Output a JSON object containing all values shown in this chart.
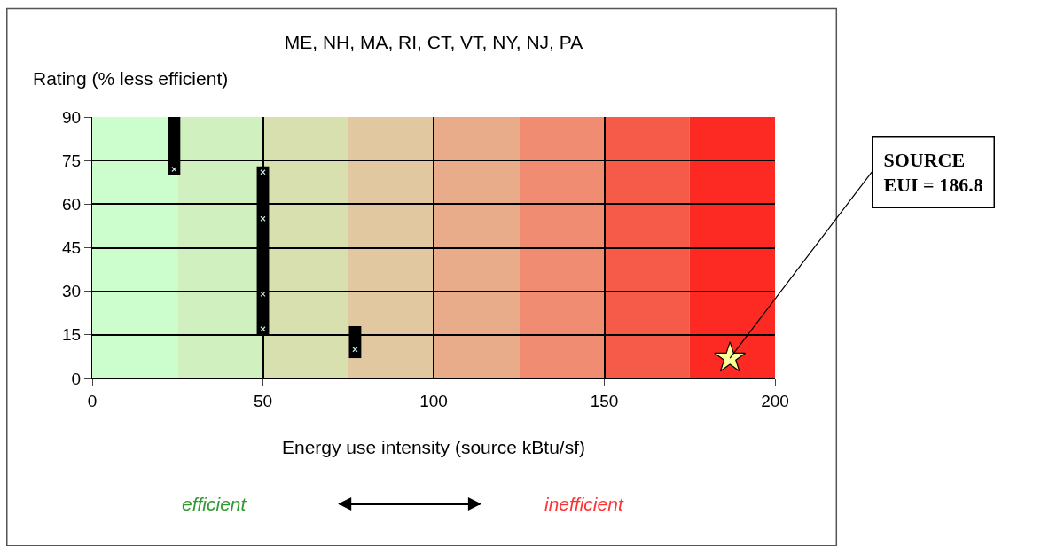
{
  "chart_data": {
    "type": "bar",
    "title": "ME, NH, MA, RI, CT, VT, NY, NJ, PA",
    "xlabel": "Energy use intensity (source kBtu/sf)",
    "ylabel": "Rating (% less efficient)",
    "xlim": [
      0,
      200
    ],
    "xticks": [
      0,
      50,
      100,
      150,
      200
    ],
    "ylim": [
      0,
      90
    ],
    "yticks": [
      0,
      15,
      30,
      45,
      60,
      75,
      90
    ],
    "grid": true,
    "series": [
      {
        "color": "#000000",
        "x": [
          24,
          50,
          77
        ],
        "base": [
          70,
          15,
          7
        ],
        "values": [
          20,
          58,
          11
        ]
      },
      {
        "type": "scatter",
        "color": "#c8e8e0",
        "marker": "cross",
        "x": [
          24,
          50,
          50,
          50,
          50,
          77
        ],
        "values": [
          72,
          71,
          55,
          29,
          17,
          10
        ]
      },
      {
        "type": "scatter",
        "color": "#ffff99",
        "marker": "star",
        "x": [
          186.8
        ],
        "values": [
          7
        ]
      }
    ],
    "bands": [
      {
        "axis": "x",
        "from": 0,
        "to": 25,
        "color": "#ccfdcc"
      },
      {
        "axis": "x",
        "from": 25,
        "to": 50,
        "color": "#d0f0bf"
      },
      {
        "axis": "x",
        "from": 50,
        "to": 75,
        "color": "#d8e0b0"
      },
      {
        "axis": "x",
        "from": 75,
        "to": 100,
        "color": "#e2c8a0"
      },
      {
        "axis": "x",
        "from": 100,
        "to": 125,
        "color": "#e9ac8a"
      },
      {
        "axis": "x",
        "from": 125,
        "to": 150,
        "color": "#ef8c72"
      },
      {
        "axis": "x",
        "from": 150,
        "to": 175,
        "color": "#f65a48"
      },
      {
        "axis": "x",
        "from": 175,
        "to": 200,
        "color": "#fc2a22"
      }
    ],
    "annotations": [
      {
        "text": "SOURCE\nEUI = 186.8",
        "x": 186.8,
        "y": 7
      },
      "efficient",
      "inefficient"
    ]
  }
}
